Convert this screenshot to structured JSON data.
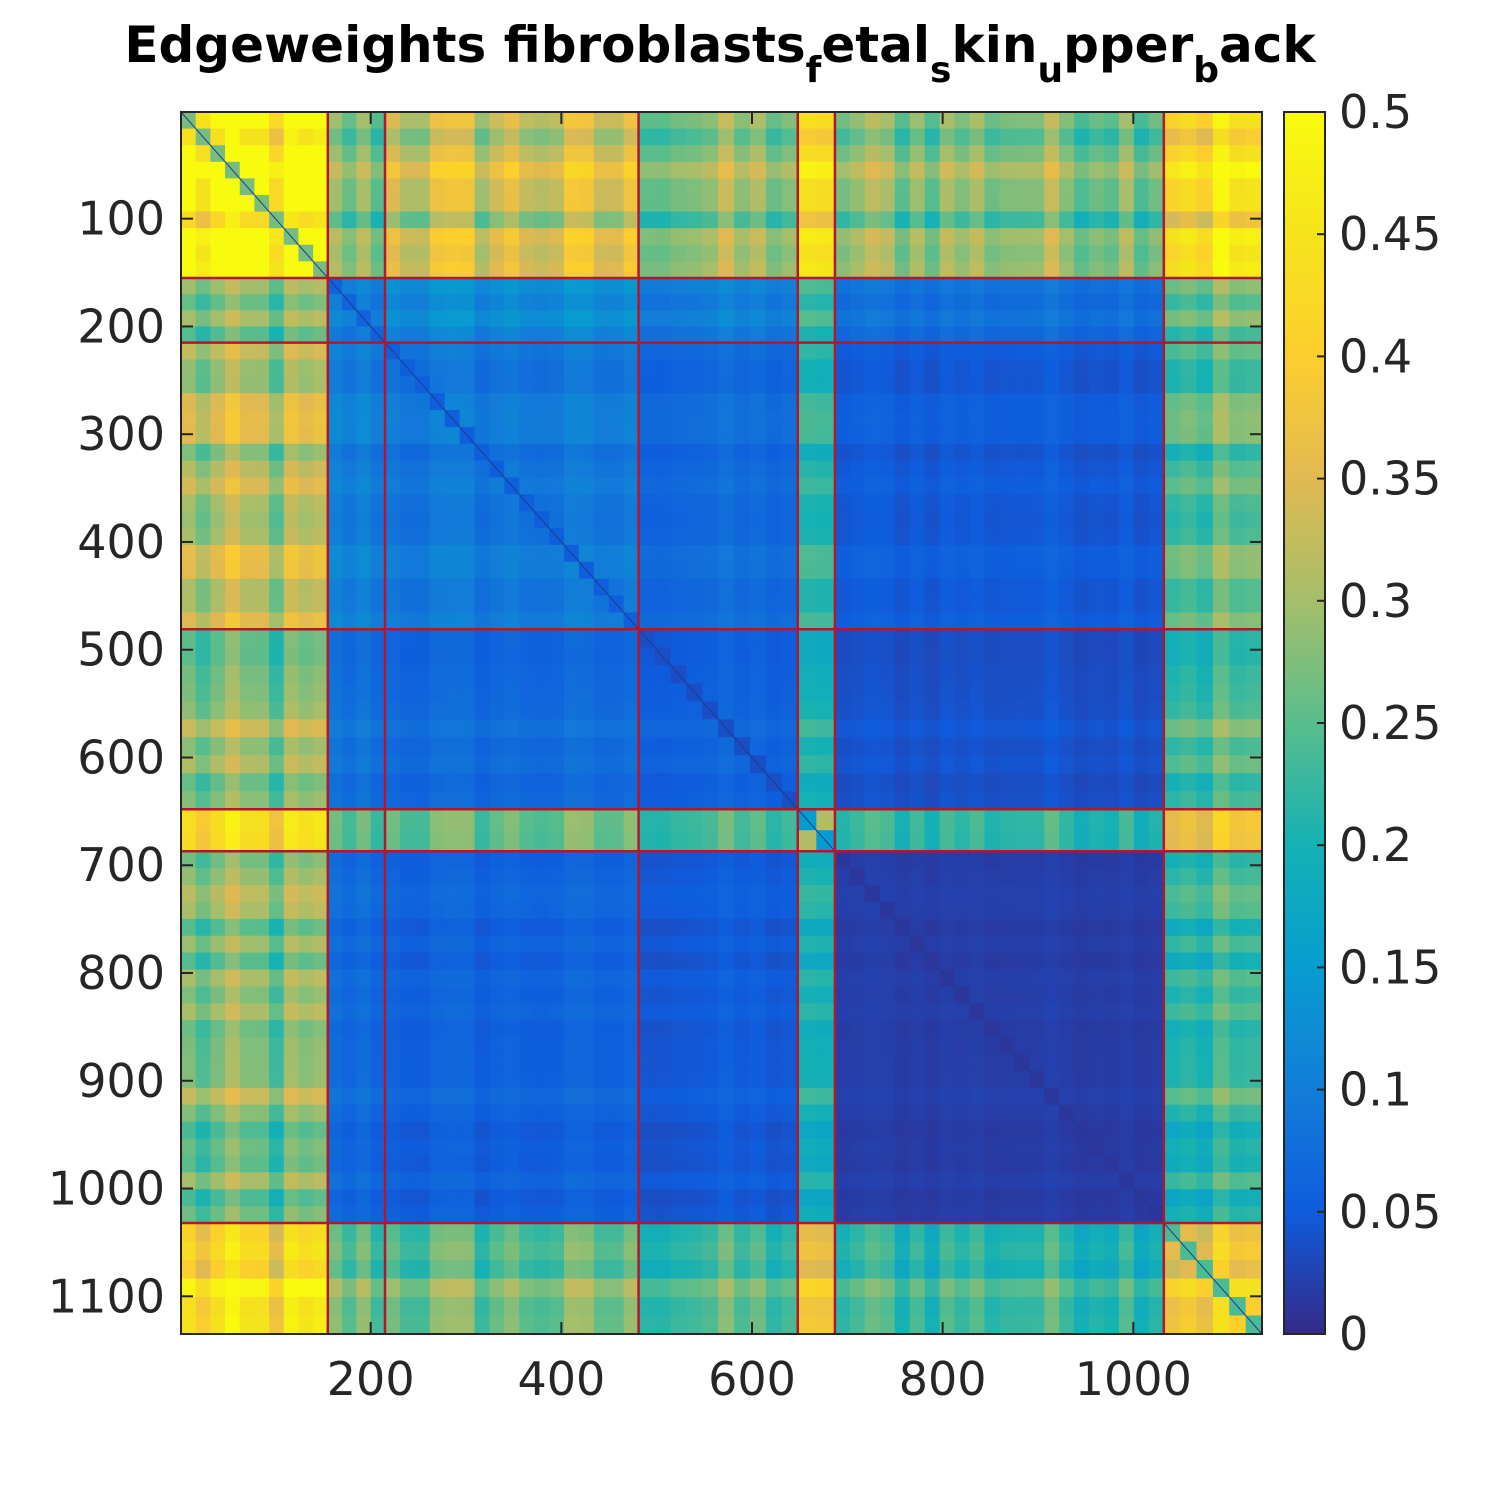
{
  "chart_data": {
    "type": "heatmap",
    "title": {
      "segments": [
        {
          "text": "Edgeweights fibroblasts",
          "sub": false
        },
        {
          "text": "f",
          "sub": true
        },
        {
          "text": "etal",
          "sub": false
        },
        {
          "text": "s",
          "sub": true
        },
        {
          "text": "kin",
          "sub": false
        },
        {
          "text": "u",
          "sub": true
        },
        {
          "text": "pper",
          "sub": false
        },
        {
          "text": "b",
          "sub": true
        },
        {
          "text": "ack",
          "sub": false
        }
      ]
    },
    "xlabel": "",
    "ylabel": "",
    "xlim": [
      1,
      1135
    ],
    "ylim": [
      1,
      1135
    ],
    "x_ticks": [
      200,
      400,
      600,
      800,
      1000
    ],
    "y_ticks": [
      100,
      200,
      300,
      400,
      500,
      600,
      700,
      800,
      900,
      1000,
      1100
    ],
    "y_reversed": true,
    "colorbar": {
      "colormap": "parula",
      "range": [
        0,
        0.5
      ],
      "ticks": [
        "0",
        "0.05",
        "0.1",
        "0.15",
        "0.2",
        "0.25",
        "0.3",
        "0.35",
        "0.4",
        "0.45",
        "0.5"
      ]
    },
    "cluster_boundaries": [
      1,
      155,
      215,
      481,
      648,
      687,
      1032,
      1135
    ],
    "cluster_mean_weights": [
      [
        0.45,
        0.26,
        0.32,
        0.27,
        0.37,
        0.27,
        0.42
      ],
      [
        0.26,
        0.1,
        0.12,
        0.1,
        0.2,
        0.08,
        0.26
      ],
      [
        0.3,
        0.1,
        0.09,
        0.07,
        0.19,
        0.05,
        0.25
      ],
      [
        0.27,
        0.08,
        0.07,
        0.06,
        0.18,
        0.04,
        0.24
      ],
      [
        0.37,
        0.22,
        0.23,
        0.21,
        0.25,
        0.2,
        0.34
      ],
      [
        0.27,
        0.07,
        0.06,
        0.05,
        0.18,
        0.02,
        0.23
      ],
      [
        0.42,
        0.26,
        0.26,
        0.24,
        0.34,
        0.23,
        0.4
      ]
    ],
    "boundary_line_color": "#b2182b"
  }
}
